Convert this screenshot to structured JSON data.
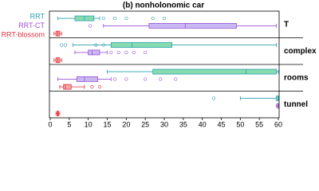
{
  "chart_data": {
    "type": "box",
    "title": "(b) nonholonomic car",
    "categories": [
      "T",
      "complex",
      "rooms",
      "tunnel"
    ],
    "series": [
      {
        "name": "RRT",
        "color": "#2a9fb0",
        "fill": "#86dcae",
        "stats": [
          [
            2,
            6.5,
            9,
            11.5,
            13
          ],
          [
            6,
            16,
            21.5,
            32,
            59.5
          ],
          [
            15,
            27,
            51.5,
            59.5,
            60
          ],
          [
            50,
            59.5,
            60,
            60,
            60
          ]
        ],
        "outliers": [
          [
            14,
            17,
            20,
            27,
            30
          ],
          [
            3,
            4,
            12,
            14
          ],
          [],
          [
            43
          ]
        ]
      },
      {
        "name": "RRT-CT",
        "color": "#9b4fd6",
        "fill": "#c8b8f2",
        "stats": [
          [
            14,
            26,
            35.5,
            49,
            59.5
          ],
          [
            6.5,
            10,
            11,
            13,
            15
          ],
          [
            2,
            7,
            9,
            12.5,
            16
          ],
          [
            59.5,
            59.8,
            60,
            60,
            60
          ]
        ],
        "outliers": [
          [
            10.5
          ],
          [
            16,
            18,
            20,
            22,
            25
          ],
          [
            17,
            20,
            25,
            29,
            33
          ],
          []
        ]
      },
      {
        "name": "RRT-blossom",
        "color": "#e0303a",
        "fill": "#f6a8a8",
        "stats": [
          [
            1,
            1.5,
            2,
            2.5,
            3
          ],
          [
            1,
            1.5,
            2,
            2.5,
            3
          ],
          [
            2.5,
            3.5,
            4,
            5.5,
            9
          ],
          [
            1.5,
            1.8,
            2,
            2.2,
            2.5
          ]
        ],
        "outliers": [
          [],
          [],
          [
            11,
            13
          ],
          []
        ]
      }
    ],
    "xlim": [
      0,
      60
    ],
    "xticks": [
      0,
      5,
      10,
      15,
      20,
      25,
      30,
      35,
      40,
      45,
      50,
      55,
      60
    ]
  }
}
